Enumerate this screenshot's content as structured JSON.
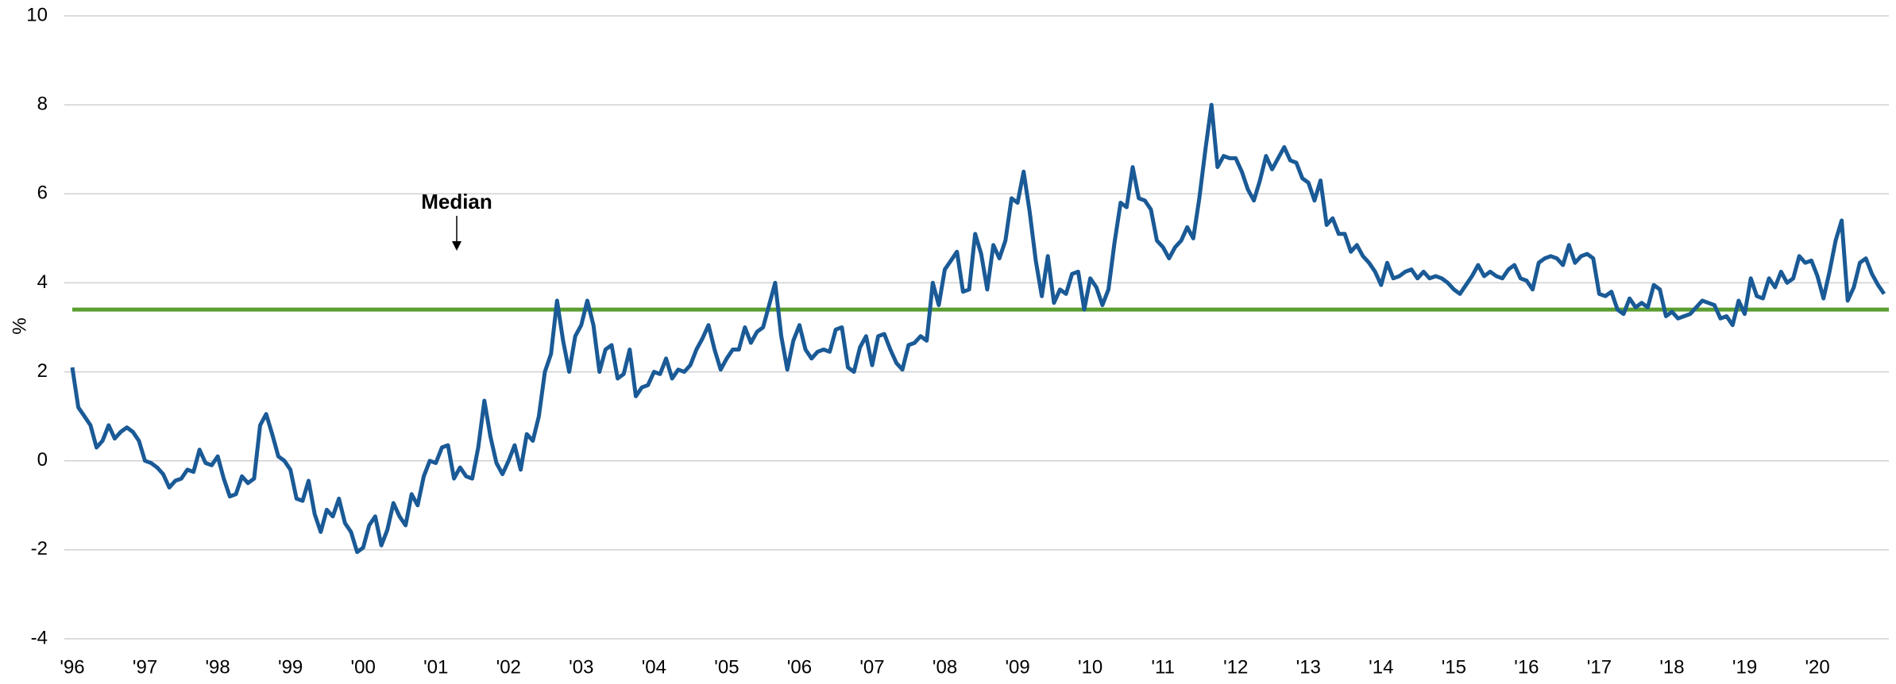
{
  "chart_data": {
    "type": "line",
    "y_label": "%",
    "categories": [
      "'96",
      null,
      null,
      null,
      null,
      null,
      null,
      null,
      null,
      null,
      null,
      null,
      "'97",
      null,
      null,
      null,
      null,
      null,
      null,
      null,
      null,
      null,
      null,
      null,
      "'98",
      null,
      null,
      null,
      null,
      null,
      null,
      null,
      null,
      null,
      null,
      null,
      "'99",
      null,
      null,
      null,
      null,
      null,
      null,
      null,
      null,
      null,
      null,
      null,
      "'00",
      null,
      null,
      null,
      null,
      null,
      null,
      null,
      null,
      null,
      null,
      null,
      "'01",
      null,
      null,
      null,
      null,
      null,
      null,
      null,
      null,
      null,
      null,
      null,
      "'02",
      null,
      null,
      null,
      null,
      null,
      null,
      null,
      null,
      null,
      null,
      null,
      "'03",
      null,
      null,
      null,
      null,
      null,
      null,
      null,
      null,
      null,
      null,
      null,
      "'04",
      null,
      null,
      null,
      null,
      null,
      null,
      null,
      null,
      null,
      null,
      null,
      "'05",
      null,
      null,
      null,
      null,
      null,
      null,
      null,
      null,
      null,
      null,
      null,
      "'06",
      null,
      null,
      null,
      null,
      null,
      null,
      null,
      null,
      null,
      null,
      null,
      "'07",
      null,
      null,
      null,
      null,
      null,
      null,
      null,
      null,
      null,
      null,
      null,
      "'08",
      null,
      null,
      null,
      null,
      null,
      null,
      null,
      null,
      null,
      null,
      null,
      "'09",
      null,
      null,
      null,
      null,
      null,
      null,
      null,
      null,
      null,
      null,
      null,
      "'10",
      null,
      null,
      null,
      null,
      null,
      null,
      null,
      null,
      null,
      null,
      null,
      "'11",
      null,
      null,
      null,
      null,
      null,
      null,
      null,
      null,
      null,
      null,
      null,
      "'12",
      null,
      null,
      null,
      null,
      null,
      null,
      null,
      null,
      null,
      null,
      null,
      "'13",
      null,
      null,
      null,
      null,
      null,
      null,
      null,
      null,
      null,
      null,
      null,
      "'14",
      null,
      null,
      null,
      null,
      null,
      null,
      null,
      null,
      null,
      null,
      null,
      "'15",
      null,
      null,
      null,
      null,
      null,
      null,
      null,
      null,
      null,
      null,
      null,
      "'16",
      null,
      null,
      null,
      null,
      null,
      null,
      null,
      null,
      null,
      null,
      null,
      "'17",
      null,
      null,
      null,
      null,
      null,
      null,
      null,
      null,
      null,
      null,
      null,
      "'18",
      null,
      null,
      null,
      null,
      null,
      null,
      null,
      null,
      null,
      null,
      null,
      "'19",
      null,
      null,
      null,
      null,
      null,
      null,
      null,
      null,
      null,
      null,
      null,
      "'20",
      null,
      null,
      null,
      null,
      null,
      null,
      null,
      null,
      null,
      null,
      null
    ],
    "series": [
      {
        "color": "#1a5a96",
        "values": [
          2.1,
          1.2,
          1.0,
          0.8,
          0.3,
          0.45,
          0.8,
          0.5,
          0.65,
          0.75,
          0.65,
          0.45,
          0.0,
          -0.05,
          -0.15,
          -0.3,
          -0.6,
          -0.45,
          -0.4,
          -0.2,
          -0.25,
          0.25,
          -0.05,
          -0.1,
          0.1,
          -0.4,
          -0.8,
          -0.75,
          -0.35,
          -0.5,
          -0.4,
          0.8,
          1.05,
          0.6,
          0.1,
          0.0,
          -0.2,
          -0.85,
          -0.9,
          -0.45,
          -1.2,
          -1.6,
          -1.1,
          -1.25,
          -0.85,
          -1.4,
          -1.6,
          -2.05,
          -1.95,
          -1.45,
          -1.25,
          -1.9,
          -1.55,
          -0.95,
          -1.25,
          -1.45,
          -0.75,
          -1.0,
          -0.35,
          0.0,
          -0.05,
          0.3,
          0.35,
          -0.4,
          -0.15,
          -0.35,
          -0.4,
          0.3,
          1.35,
          0.55,
          -0.05,
          -0.3,
          0.0,
          0.35,
          -0.2,
          0.6,
          0.45,
          1.0,
          2.0,
          2.4,
          3.6,
          2.7,
          2.0,
          2.8,
          3.05,
          3.6,
          3.05,
          2.0,
          2.5,
          2.6,
          1.85,
          1.95,
          2.5,
          1.45,
          1.65,
          1.7,
          2.0,
          1.95,
          2.3,
          1.85,
          2.05,
          2.0,
          2.15,
          2.5,
          2.75,
          3.05,
          2.5,
          2.05,
          2.3,
          2.5,
          2.5,
          3.0,
          2.65,
          2.9,
          3.0,
          3.5,
          4.0,
          2.8,
          2.05,
          2.7,
          3.05,
          2.5,
          2.3,
          2.45,
          2.5,
          2.45,
          2.95,
          3.0,
          2.1,
          2.0,
          2.55,
          2.8,
          2.15,
          2.8,
          2.85,
          2.5,
          2.2,
          2.05,
          2.6,
          2.65,
          2.8,
          2.7,
          4.0,
          3.5,
          4.3,
          4.5,
          4.7,
          3.8,
          3.85,
          5.1,
          4.65,
          3.85,
          4.85,
          4.55,
          4.95,
          5.9,
          5.8,
          6.5,
          5.6,
          4.5,
          3.7,
          4.6,
          3.55,
          3.85,
          3.75,
          4.2,
          4.25,
          3.4,
          4.1,
          3.9,
          3.5,
          3.85,
          4.9,
          5.8,
          5.7,
          6.6,
          5.9,
          5.85,
          5.65,
          4.95,
          4.8,
          4.55,
          4.8,
          4.95,
          5.25,
          5.0,
          5.9,
          7.0,
          8.0,
          6.6,
          6.85,
          6.8,
          6.8,
          6.5,
          6.1,
          5.85,
          6.3,
          6.85,
          6.55,
          6.8,
          7.05,
          6.75,
          6.7,
          6.35,
          6.25,
          5.85,
          6.3,
          5.3,
          5.45,
          5.1,
          5.1,
          4.7,
          4.85,
          4.6,
          4.45,
          4.25,
          3.95,
          4.45,
          4.1,
          4.15,
          4.25,
          4.3,
          4.1,
          4.25,
          4.1,
          4.15,
          4.1,
          4.0,
          3.85,
          3.75,
          3.95,
          4.15,
          4.4,
          4.15,
          4.25,
          4.15,
          4.1,
          4.3,
          4.4,
          4.1,
          4.05,
          3.85,
          4.45,
          4.55,
          4.6,
          4.55,
          4.4,
          4.85,
          4.45,
          4.6,
          4.65,
          4.55,
          3.75,
          3.7,
          3.8,
          3.4,
          3.3,
          3.65,
          3.45,
          3.55,
          3.45,
          3.95,
          3.85,
          3.25,
          3.35,
          3.2,
          3.25,
          3.3,
          3.45,
          3.6,
          3.55,
          3.5,
          3.2,
          3.25,
          3.05,
          3.6,
          3.3,
          4.1,
          3.7,
          3.65,
          4.1,
          3.9,
          4.25,
          4.0,
          4.1,
          4.6,
          4.45,
          4.5,
          4.15,
          3.65,
          4.25,
          4.95,
          5.4,
          3.6,
          3.9,
          4.45,
          4.55,
          4.2,
          3.95,
          3.75
        ]
      }
    ],
    "median": {
      "value": 3.4,
      "label": "Median",
      "color": "#5a9e2f"
    },
    "ylim": [
      -4,
      10
    ],
    "yticks": [
      -4,
      -2,
      0,
      2,
      4,
      6,
      8,
      10
    ],
    "grid": true
  }
}
